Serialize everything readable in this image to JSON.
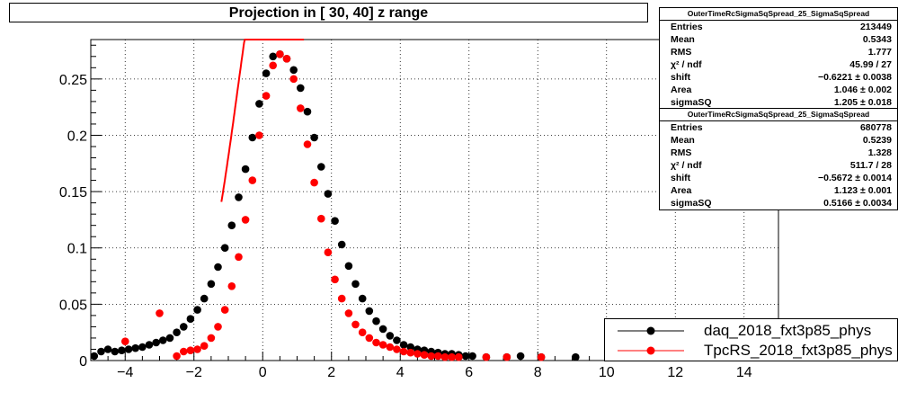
{
  "title": "Projection in [  30,  40] z range",
  "stats_boxes": [
    {
      "name": "OuterTimeRcSigmaSqSpread_25_SigmaSqSpread",
      "rows": [
        {
          "label": "Entries",
          "value": "213449"
        },
        {
          "label": "Mean",
          "value": "0.5343"
        },
        {
          "label": "RMS",
          "value": "1.777"
        },
        {
          "label": "χ² / ndf",
          "value": "45.99 / 27"
        },
        {
          "label": "shift",
          "value": "−0.6221 ± 0.0038"
        },
        {
          "label": "Area",
          "value": "1.046 ± 0.002"
        },
        {
          "label": "sigmaSQ",
          "value": "1.205 ± 0.018"
        }
      ]
    },
    {
      "name": "OuterTimeRcSigmaSqSpread_25_SigmaSqSpread",
      "rows": [
        {
          "label": "Entries",
          "value": "680778"
        },
        {
          "label": "Mean",
          "value": "0.5239"
        },
        {
          "label": "RMS",
          "value": "1.328"
        },
        {
          "label": "χ² / ndf",
          "value": "511.7 / 28"
        },
        {
          "label": "shift",
          "value": "−0.5672 ± 0.0014"
        },
        {
          "label": "Area",
          "value": "1.123 ± 0.001"
        },
        {
          "label": "sigmaSQ",
          "value": "0.5166 ± 0.0034"
        }
      ]
    }
  ],
  "legend": [
    {
      "label": "daq_2018_fxt3p85_phys",
      "color": "#000000"
    },
    {
      "label": "TpcRS_2018_fxt3p85_phys",
      "color": "#ff0000"
    }
  ],
  "chart_data": {
    "type": "scatter",
    "title": "Projection in [  30,  40] z range",
    "xlabel": "",
    "ylabel": "",
    "xlim": [
      -5,
      15
    ],
    "ylim": [
      0,
      0.285
    ],
    "x_ticks": [
      -4,
      -2,
      0,
      2,
      4,
      6,
      8,
      10,
      12,
      14
    ],
    "y_ticks": [
      0,
      0.05,
      0.1,
      0.15,
      0.2,
      0.25
    ],
    "y_tick_labels": [
      "0",
      "0.05",
      "0.1",
      "0.15",
      "0.2",
      "0.25"
    ],
    "grid": true,
    "series": [
      {
        "name": "daq_2018_fxt3p85_phys",
        "color": "#000000",
        "x": [
          -4.9,
          -4.7,
          -4.5,
          -4.3,
          -4.1,
          -3.9,
          -3.7,
          -3.5,
          -3.3,
          -3.1,
          -2.9,
          -2.7,
          -2.5,
          -2.3,
          -2.1,
          -1.9,
          -1.7,
          -1.5,
          -1.3,
          -1.1,
          -0.9,
          -0.7,
          -0.5,
          -0.3,
          -0.1,
          0.1,
          0.3,
          0.5,
          0.7,
          0.9,
          1.1,
          1.3,
          1.5,
          1.7,
          1.9,
          2.1,
          2.3,
          2.5,
          2.7,
          2.9,
          3.1,
          3.3,
          3.5,
          3.7,
          3.9,
          4.1,
          4.3,
          4.5,
          4.7,
          4.9,
          5.1,
          5.3,
          5.5,
          5.7,
          5.9,
          6.1,
          6.5,
          7.1,
          7.5,
          8.1,
          9.1
        ],
        "y": [
          0.004,
          0.008,
          0.01,
          0.008,
          0.009,
          0.01,
          0.011,
          0.012,
          0.014,
          0.016,
          0.018,
          0.02,
          0.025,
          0.03,
          0.037,
          0.045,
          0.055,
          0.068,
          0.083,
          0.1,
          0.12,
          0.145,
          0.17,
          0.198,
          0.228,
          0.255,
          0.27,
          0.272,
          0.268,
          0.258,
          0.242,
          0.221,
          0.198,
          0.172,
          0.148,
          0.124,
          0.103,
          0.084,
          0.068,
          0.055,
          0.044,
          0.035,
          0.028,
          0.022,
          0.018,
          0.014,
          0.012,
          0.01,
          0.009,
          0.008,
          0.007,
          0.006,
          0.006,
          0.005,
          0.004,
          0.004,
          0.003,
          0.003,
          0.004,
          0.003,
          0.003
        ]
      },
      {
        "name": "TpcRS_2018_fxt3p85_phys",
        "color": "#ff0000",
        "x": [
          -4.0,
          -3.0,
          -2.5,
          -2.3,
          -2.1,
          -1.9,
          -1.7,
          -1.5,
          -1.3,
          -1.1,
          -0.9,
          -0.7,
          -0.5,
          -0.3,
          -0.1,
          0.1,
          0.3,
          0.5,
          0.7,
          0.9,
          1.1,
          1.3,
          1.5,
          1.7,
          1.9,
          2.1,
          2.3,
          2.5,
          2.7,
          2.9,
          3.1,
          3.3,
          3.5,
          3.7,
          3.9,
          4.1,
          4.3,
          4.5,
          4.7,
          4.9,
          5.1,
          5.3,
          5.5,
          5.7,
          6.5,
          7.1,
          8.1
        ],
        "y": [
          0.017,
          0.042,
          0.004,
          0.008,
          0.009,
          0.01,
          0.013,
          0.02,
          0.03,
          0.045,
          0.066,
          0.092,
          0.125,
          0.16,
          0.2,
          0.235,
          0.262,
          0.272,
          0.268,
          0.25,
          0.224,
          0.192,
          0.158,
          0.126,
          0.096,
          0.072,
          0.055,
          0.042,
          0.032,
          0.025,
          0.02,
          0.016,
          0.014,
          0.012,
          0.01,
          0.008,
          0.007,
          0.006,
          0.005,
          0.004,
          0.004,
          0.003,
          0.003,
          0.003,
          0.003,
          0.003,
          0.003
        ]
      }
    ],
    "fit_curves": [
      {
        "color": "#ff0000",
        "mean": 0.36,
        "sigma": 1.08,
        "amp": 0.4,
        "x_range": [
          -1.2,
          1.2
        ]
      }
    ]
  }
}
